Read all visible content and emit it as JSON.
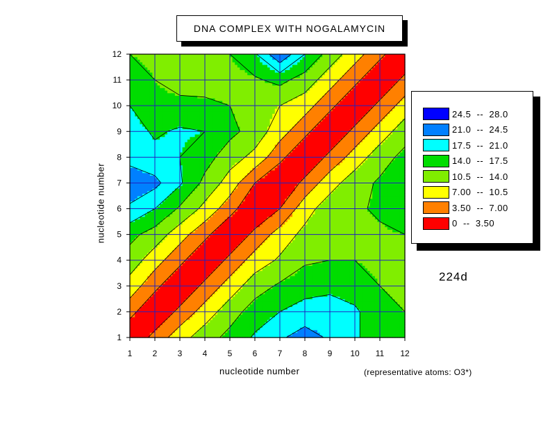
{
  "chart_data": {
    "type": "heatmap",
    "subtype": "filled-contour",
    "title": "DNA COMPLEX WITH NOGALAMYCIN",
    "xlabel": "nucleotide number",
    "ylabel": "nucleotide number",
    "annotation": "(representative atoms: O3*)",
    "structure_id": "224d",
    "xlim": [
      1,
      12
    ],
    "ylim": [
      1,
      12
    ],
    "x_ticks": [
      "1",
      "2",
      "3",
      "4",
      "5",
      "6",
      "7",
      "8",
      "9",
      "10",
      "11",
      "12"
    ],
    "y_ticks": [
      "1",
      "2",
      "3",
      "4",
      "5",
      "6",
      "7",
      "8",
      "9",
      "10",
      "11",
      "12"
    ],
    "grid": true,
    "legend_position": "right",
    "levels": [
      {
        "label": "24.5  --  28.0",
        "color": "#0000ff"
      },
      {
        "label": "21.0  --  24.5",
        "color": "#0080ff"
      },
      {
        "label": "17.5  --  21.0",
        "color": "#00ffff"
      },
      {
        "label": "14.0  --  17.5",
        "color": "#00dd00"
      },
      {
        "label": "10.5  --  14.0",
        "color": "#80ee00"
      },
      {
        "label": "7.00  --  10.5",
        "color": "#ffff00"
      },
      {
        "label": "3.50  --  7.00",
        "color": "#ff8000"
      },
      {
        "label": "0  --  3.50",
        "color": "#ff0000"
      }
    ],
    "level_bounds": [
      0,
      3.5,
      7.0,
      10.5,
      14.0,
      17.5,
      21.0,
      24.5,
      28.0
    ],
    "matrix": [
      [
        0.0,
        4.8,
        9.0,
        12.5,
        15.0,
        18.0,
        20.5,
        22.5,
        20.5,
        18.0,
        15.5,
        14.5
      ],
      [
        4.8,
        0.0,
        4.5,
        8.5,
        12.5,
        15.5,
        17.5,
        19.0,
        19.5,
        18.0,
        15.5,
        14.0
      ],
      [
        9.0,
        4.5,
        0.0,
        4.5,
        8.5,
        12.5,
        14.5,
        16.0,
        16.5,
        16.0,
        14.0,
        12.5
      ],
      [
        12.5,
        8.5,
        4.5,
        0.0,
        4.5,
        8.5,
        11.0,
        13.5,
        14.0,
        14.0,
        13.0,
        12.5
      ],
      [
        15.0,
        12.5,
        8.5,
        4.5,
        0.0,
        4.5,
        8.5,
        11.5,
        13.0,
        13.5,
        13.5,
        14.0
      ],
      [
        20.5,
        17.5,
        13.5,
        9.5,
        5.0,
        0.0,
        3.5,
        9.0,
        12.5,
        13.5,
        14.5,
        16.0
      ],
      [
        23.0,
        22.0,
        18.0,
        13.0,
        9.0,
        3.5,
        0.0,
        4.5,
        9.0,
        12.5,
        14.5,
        17.0
      ],
      [
        20.0,
        18.5,
        17.5,
        15.5,
        12.0,
        9.5,
        4.5,
        0.0,
        4.5,
        8.5,
        12.5,
        15.0
      ],
      [
        19.0,
        17.0,
        18.0,
        17.5,
        15.0,
        12.5,
        8.5,
        4.5,
        0.0,
        4.5,
        8.5,
        12.5
      ],
      [
        17.5,
        15.0,
        15.0,
        15.0,
        14.0,
        12.0,
        10.5,
        8.5,
        4.5,
        0.0,
        4.5,
        8.5
      ],
      [
        16.0,
        14.0,
        12.5,
        12.0,
        12.5,
        13.5,
        15.0,
        12.5,
        8.5,
        4.5,
        0.0,
        4.5
      ],
      [
        14.0,
        13.0,
        12.0,
        12.0,
        14.0,
        17.0,
        24.0,
        17.5,
        12.5,
        8.5,
        4.5,
        0.0
      ]
    ]
  }
}
